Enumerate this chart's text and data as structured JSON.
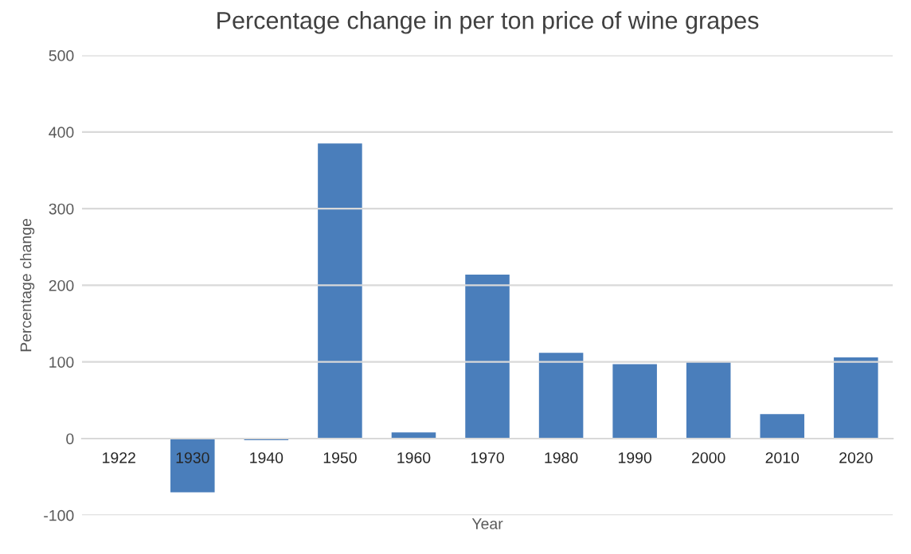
{
  "chart_data": {
    "type": "bar",
    "title": "Percentage change in per ton price of wine grapes",
    "xlabel": "Year",
    "ylabel": "Percentage change",
    "categories": [
      "1922",
      "1930",
      "1940",
      "1950",
      "1960",
      "1970",
      "1980",
      "1990",
      "2000",
      "2010",
      "2020"
    ],
    "values": [
      0,
      -70,
      -2,
      385,
      8,
      214,
      112,
      97,
      100,
      32,
      106
    ],
    "color": "#4a7ebb",
    "ylim": [
      -100,
      500
    ],
    "yticks": [
      -100,
      0,
      100,
      200,
      300,
      400,
      500
    ],
    "grid": "y"
  }
}
